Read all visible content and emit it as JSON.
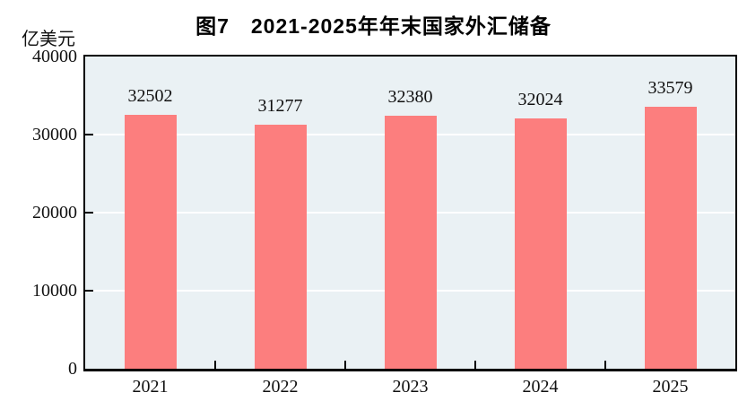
{
  "chart_data": {
    "type": "bar",
    "title": "图7　2021-2025年年末国家外汇储备",
    "unit_label": "亿美元",
    "categories": [
      "2021",
      "2022",
      "2023",
      "2024",
      "2025"
    ],
    "values": [
      32502,
      31277,
      32380,
      32024,
      33579
    ],
    "xlabel": "",
    "ylabel": "亿美元",
    "ylim": [
      0,
      40000
    ],
    "yticks": [
      0,
      10000,
      20000,
      30000,
      40000
    ],
    "grid": true,
    "legend": "none",
    "value_labels": true,
    "colors": {
      "bar": "#fc7e7e",
      "plot_background": "#eaf1f4",
      "gridline": "#ffffff",
      "axis_border": "#000000",
      "text": "#111111",
      "figure_background": "#ffffff"
    }
  }
}
